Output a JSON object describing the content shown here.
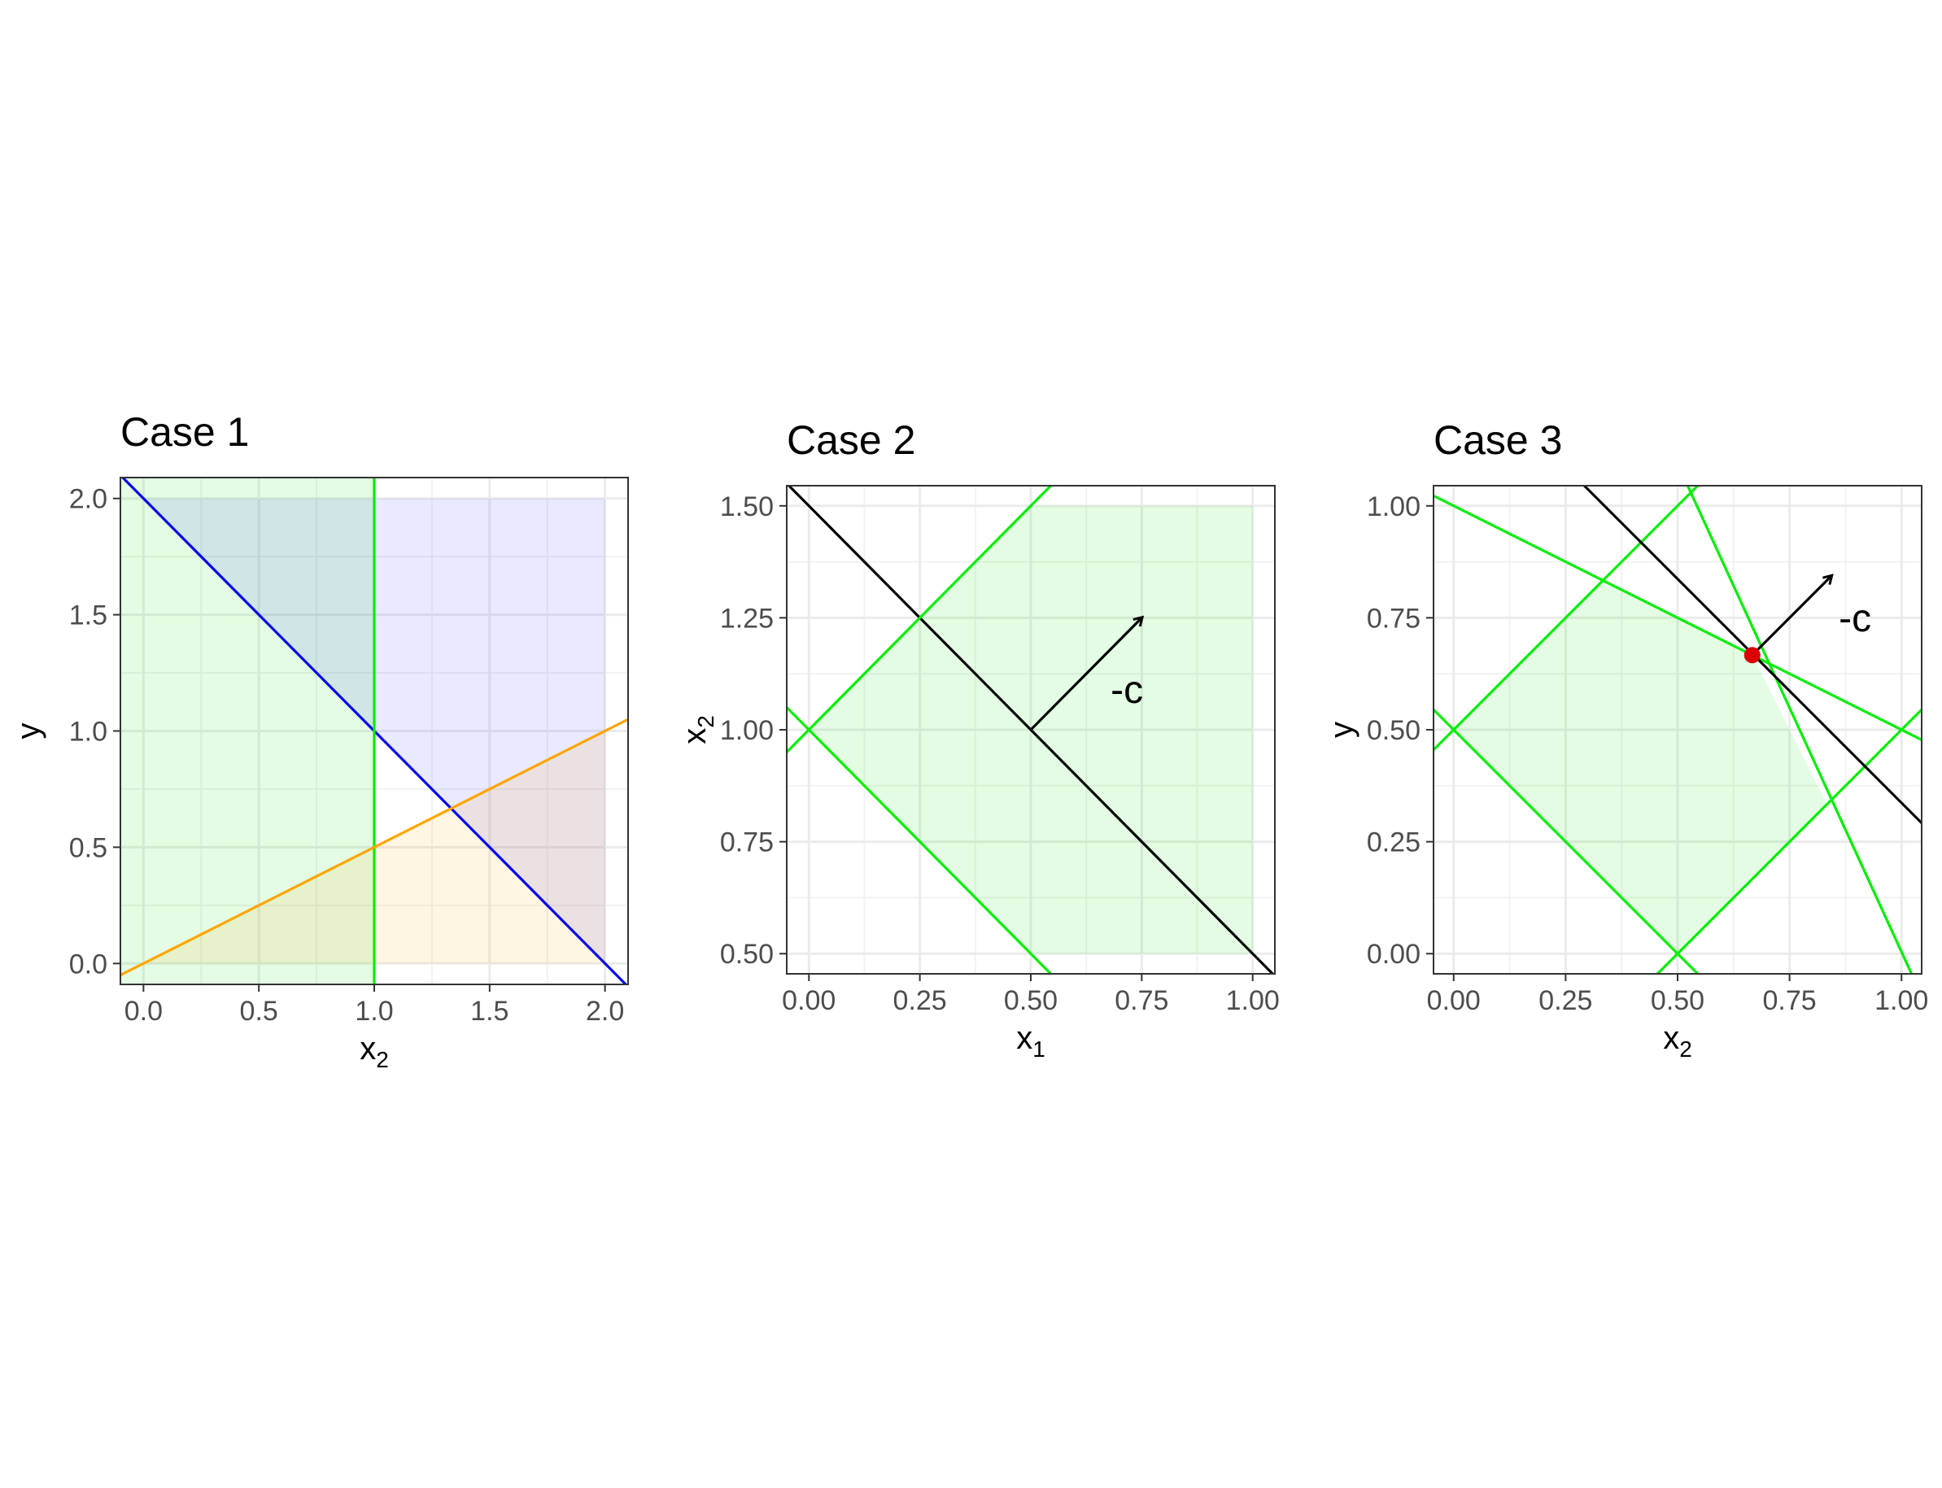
{
  "chart_data": [
    {
      "type": "line",
      "title": "Case 1",
      "xlabel": "x",
      "xlabel_sub": "2",
      "ylabel": "y",
      "ylabel_sub": "",
      "xlim": [
        -0.1,
        2.1
      ],
      "ylim": [
        -0.09,
        2.09
      ],
      "xticks": [
        0.0,
        0.5,
        1.0,
        1.5,
        2.0
      ],
      "xtick_labels": [
        "0.0",
        "0.5",
        "1.0",
        "1.5",
        "2.0"
      ],
      "yticks": [
        0.0,
        0.5,
        1.0,
        1.5,
        2.0
      ],
      "ytick_labels": [
        "0.0",
        "0.5",
        "1.0",
        "1.5",
        "2.0"
      ],
      "grid": true,
      "regions": [
        {
          "color": "#00e000",
          "opacity": 0.11,
          "points": [
            [
              -0.1,
              -0.09
            ],
            [
              1.0,
              -0.09
            ],
            [
              1.0,
              2.09
            ],
            [
              -0.1,
              2.09
            ]
          ]
        },
        {
          "color": "#3333ff",
          "opacity": 0.11,
          "points": [
            [
              0.0,
              2.0
            ],
            [
              2.0,
              2.0
            ],
            [
              2.0,
              0.0
            ]
          ]
        },
        {
          "color": "#ffa500",
          "opacity": 0.11,
          "points": [
            [
              0.0,
              0.0
            ],
            [
              2.0,
              0.0
            ],
            [
              2.0,
              1.0
            ]
          ]
        }
      ],
      "lines": [
        {
          "color": "#0000ee",
          "points": [
            [
              -0.1,
              2.1
            ],
            [
              2.1,
              -0.1
            ]
          ]
        },
        {
          "color": "#00ee00",
          "points": [
            [
              1.0,
              -0.09
            ],
            [
              1.0,
              2.09
            ]
          ]
        },
        {
          "color": "#ffa500",
          "points": [
            [
              -0.1,
              -0.05
            ],
            [
              2.1,
              1.05
            ]
          ]
        }
      ],
      "arrows": [],
      "annotations": [],
      "points": []
    },
    {
      "type": "line",
      "title": "Case 2",
      "xlabel": "x",
      "xlabel_sub": "1",
      "ylabel": "x",
      "ylabel_sub": "2",
      "xlim": [
        -0.05,
        1.05
      ],
      "ylim": [
        0.455,
        1.545
      ],
      "xticks": [
        0.0,
        0.25,
        0.5,
        0.75,
        1.0
      ],
      "xtick_labels": [
        "0.00",
        "0.25",
        "0.50",
        "0.75",
        "1.00"
      ],
      "yticks": [
        0.5,
        0.75,
        1.0,
        1.25,
        1.5
      ],
      "ytick_labels": [
        "0.50",
        "0.75",
        "1.00",
        "1.25",
        "1.50"
      ],
      "grid": true,
      "regions": [
        {
          "color": "#00e000",
          "opacity": 0.11,
          "points": [
            [
              0.0,
              1.0
            ],
            [
              0.5,
              1.5
            ],
            [
              1.0,
              1.5
            ],
            [
              1.0,
              0.5
            ],
            [
              0.5,
              0.5
            ]
          ]
        }
      ],
      "lines": [
        {
          "color": "#000000",
          "points": [
            [
              -0.05,
              1.55
            ],
            [
              1.05,
              0.45
            ]
          ]
        },
        {
          "color": "#00ee00",
          "points": [
            [
              -0.05,
              0.95
            ],
            [
              0.545,
              1.545
            ]
          ]
        },
        {
          "color": "#00ee00",
          "points": [
            [
              -0.05,
              1.05
            ],
            [
              0.545,
              0.455
            ]
          ]
        }
      ],
      "arrows": [
        {
          "color": "#000000",
          "from": [
            0.5,
            1.0
          ],
          "to": [
            0.75,
            1.25
          ]
        }
      ],
      "annotations": [
        {
          "text": "-c",
          "x": 0.68,
          "y": 1.06
        }
      ],
      "points": []
    },
    {
      "type": "line",
      "title": "Case 3",
      "xlabel": "x",
      "xlabel_sub": "2",
      "ylabel": "y",
      "ylabel_sub": "",
      "xlim": [
        -0.045,
        1.045
      ],
      "ylim": [
        -0.045,
        1.045
      ],
      "xticks": [
        0.0,
        0.25,
        0.5,
        0.75,
        1.0
      ],
      "xtick_labels": [
        "0.00",
        "0.25",
        "0.50",
        "0.75",
        "1.00"
      ],
      "yticks": [
        0.0,
        0.25,
        0.5,
        0.75,
        1.0
      ],
      "ytick_labels": [
        "0.00",
        "0.25",
        "0.50",
        "0.75",
        "1.00"
      ],
      "grid": true,
      "regions": [
        {
          "color": "#00e000",
          "opacity": 0.11,
          "points": [
            [
              0.0,
              0.5
            ],
            [
              0.3333,
              0.8333
            ],
            [
              0.6667,
              0.6667
            ],
            [
              0.8333,
              0.3333
            ],
            [
              0.5,
              0.0
            ]
          ]
        }
      ],
      "lines": [
        {
          "color": "#00ee00",
          "points": [
            [
              -0.045,
              1.0225
            ],
            [
              1.045,
              0.4775
            ]
          ]
        },
        {
          "color": "#00ee00",
          "points": [
            [
              -0.045,
              0.455
            ],
            [
              0.545,
              1.045
            ]
          ]
        },
        {
          "color": "#00ee00",
          "points": [
            [
              -0.045,
              0.545
            ],
            [
              0.545,
              -0.045
            ]
          ]
        },
        {
          "color": "#00ee00",
          "points": [
            [
              0.5225,
              1.045
            ],
            [
              1.0225,
              -0.045
            ]
          ]
        },
        {
          "color": "#00ee00",
          "points": [
            [
              0.455,
              -0.045
            ],
            [
              1.045,
              0.545
            ]
          ]
        },
        {
          "color": "#000000",
          "points": [
            [
              0.2917,
              1.045
            ],
            [
              1.045,
              0.2917
            ]
          ]
        }
      ],
      "arrows": [
        {
          "color": "#000000",
          "from": [
            0.6667,
            0.6667
          ],
          "to": [
            0.8433,
            0.8433
          ]
        }
      ],
      "annotations": [
        {
          "text": "-c",
          "x": 0.86,
          "y": 0.72
        }
      ],
      "points": [
        {
          "color": "#dd0000",
          "x": 0.6667,
          "y": 0.6667
        }
      ]
    }
  ]
}
